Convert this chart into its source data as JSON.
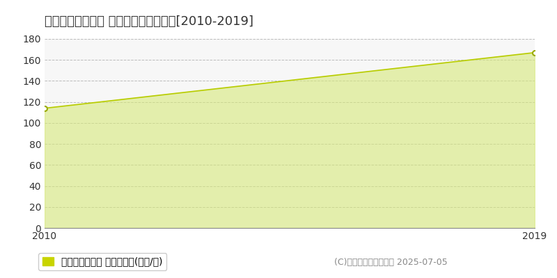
{
  "title": "川崎市幸区小向町 マンション価格推移[2010-2019]",
  "years": [
    2010,
    2019
  ],
  "values": [
    114,
    167
  ],
  "ylim": [
    0,
    180
  ],
  "yticks": [
    0,
    20,
    40,
    60,
    80,
    100,
    120,
    140,
    160,
    180
  ],
  "xticks": [
    2010,
    2019
  ],
  "line_color": "#b8cc00",
  "fill_color": "#d6e87a",
  "fill_alpha": 0.6,
  "marker_color": "white",
  "marker_edge_color": "#99aa00",
  "grid_color": "#bbbbbb",
  "figure_bg_color": "#ffffff",
  "plot_bg_color": "#f7f7f7",
  "legend_label": "マンション価格 平均坪単価(万円/坪)",
  "legend_color": "#c8d400",
  "copyright_text": "(C)土地価格ドットコム 2025-07-05",
  "title_fontsize": 13,
  "tick_fontsize": 10,
  "legend_fontsize": 10,
  "copyright_fontsize": 9
}
